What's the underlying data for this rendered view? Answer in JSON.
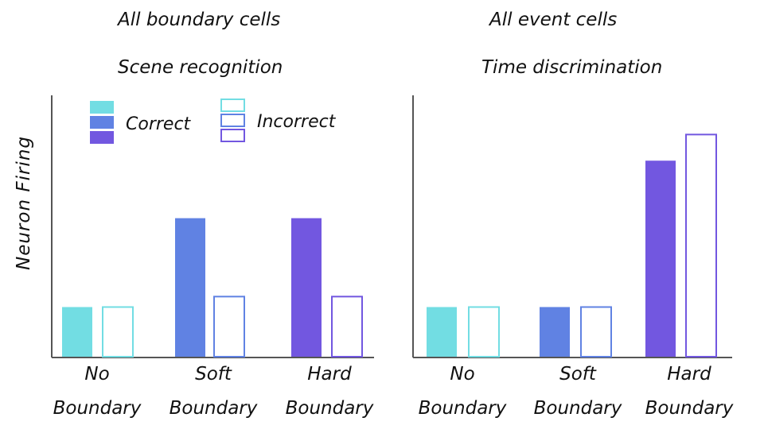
{
  "colors": {
    "no": "#72DDE3",
    "soft": "#6082E3",
    "hard": "#7257E0",
    "axis": "#555555"
  },
  "legend": {
    "correct_label": "Correct",
    "incorrect_label": "Incorrect"
  },
  "ylabel": "Neuron Firing",
  "chart_data": [
    {
      "type": "bar",
      "title": "All boundary cells",
      "subtitle": "Scene recognition",
      "xlabel": "",
      "ylabel": "Neuron Firing",
      "ylim": [
        0,
        10
      ],
      "grid": false,
      "legend_position": "top-left",
      "categories": [
        {
          "line1": "No",
          "line2": "Boundary"
        },
        {
          "line1": "Soft",
          "line2": "Boundary"
        },
        {
          "line1": "Hard",
          "line2": "Boundary"
        }
      ],
      "series": [
        {
          "name": "Correct",
          "style": "filled",
          "values": [
            1.9,
            5.3,
            5.3
          ]
        },
        {
          "name": "Incorrect",
          "style": "outline",
          "values": [
            1.9,
            2.3,
            2.3
          ]
        }
      ]
    },
    {
      "type": "bar",
      "title": "All event cells",
      "subtitle": "Time discrimination",
      "xlabel": "",
      "ylabel": "",
      "ylim": [
        0,
        10
      ],
      "grid": false,
      "categories": [
        {
          "line1": "No",
          "line2": "Boundary"
        },
        {
          "line1": "Soft",
          "line2": "Boundary"
        },
        {
          "line1": "Hard",
          "line2": "Boundary"
        }
      ],
      "series": [
        {
          "name": "Correct",
          "style": "filled",
          "values": [
            1.9,
            1.9,
            7.5
          ]
        },
        {
          "name": "Incorrect",
          "style": "outline",
          "values": [
            1.9,
            1.9,
            8.5
          ]
        }
      ]
    }
  ]
}
